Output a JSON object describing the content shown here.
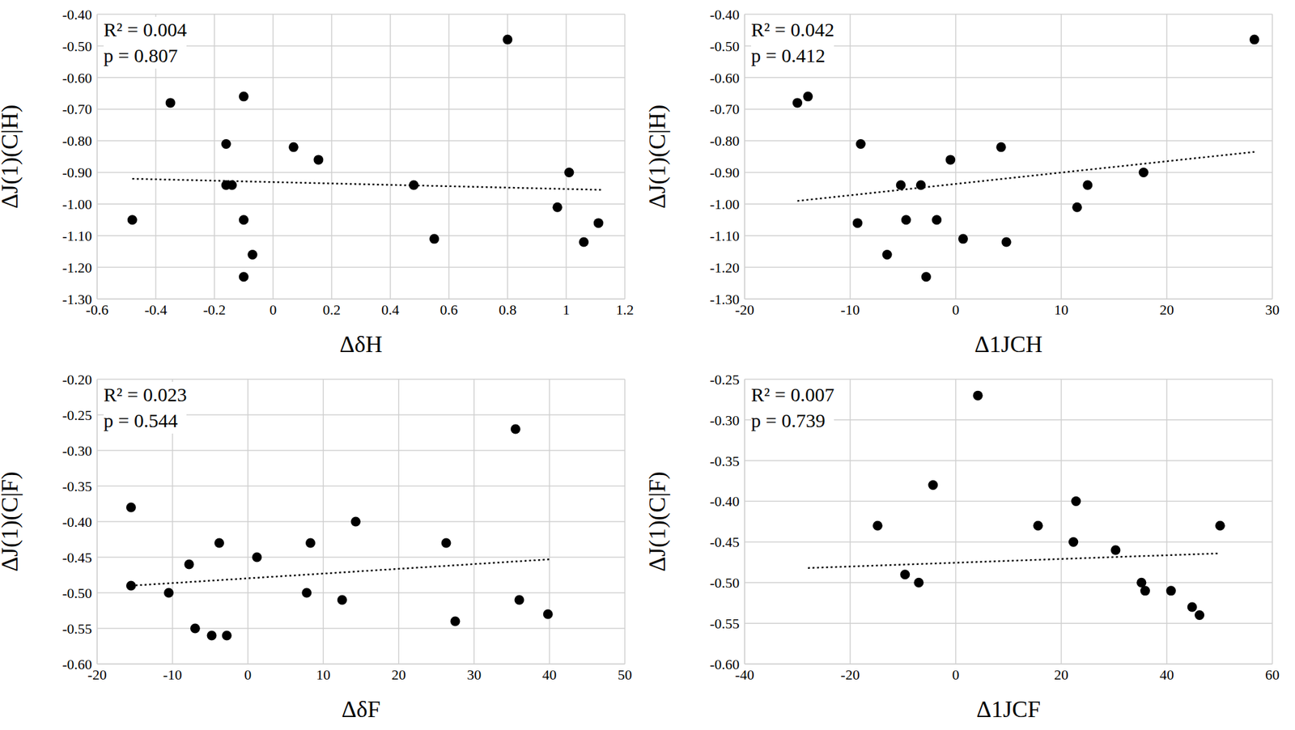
{
  "chart_data": [
    {
      "type": "scatter",
      "x_label": "ΔδH",
      "y_label": "ΔJ(1)(C|H)",
      "annotations": [
        "R² = 0.004",
        "p = 0.807"
      ],
      "x": [
        -0.48,
        -0.35,
        -0.1,
        -0.16,
        -0.16,
        -0.14,
        -0.1,
        -0.07,
        -0.1,
        0.07,
        0.155,
        0.48,
        0.55,
        0.8,
        1.01,
        0.97,
        1.06,
        1.11
      ],
      "y": [
        -1.05,
        -0.68,
        -0.66,
        -0.81,
        -0.94,
        -0.94,
        -1.05,
        -1.16,
        -1.23,
        -0.82,
        -0.86,
        -0.94,
        -1.11,
        -0.48,
        -0.9,
        -1.01,
        -1.12,
        -1.06
      ],
      "color": "#000000",
      "marker": "circle",
      "trendline": {
        "x": [
          -0.48,
          1.12
        ],
        "y": [
          -0.92,
          -0.955
        ],
        "line_style": "dotted",
        "color": "#000000"
      },
      "xlim": [
        -0.6,
        1.2
      ],
      "xticks": [
        -0.6,
        -0.4,
        -0.2,
        0,
        0.2,
        0.4,
        0.6,
        0.8,
        1,
        1.2
      ],
      "ylim": [
        -1.3,
        -0.4
      ],
      "yticks": [
        {
          "value": -1.3,
          "label": "-1.30"
        },
        {
          "value": -1.2,
          "label": "-1.20"
        },
        {
          "value": -1.1,
          "label": "-1.10"
        },
        {
          "value": -1.0,
          "label": "-1.00"
        },
        {
          "value": -0.9,
          "label": "-0.90"
        },
        {
          "value": -0.8,
          "label": "-0.80"
        },
        {
          "value": -0.7,
          "label": "-0.70"
        },
        {
          "value": -0.6,
          "label": "-0.60"
        },
        {
          "value": -0.5,
          "label": "-0.50"
        },
        {
          "value": -0.4,
          "label": "-0.40"
        }
      ],
      "grid": true
    },
    {
      "type": "scatter",
      "x_label": "Δ1JCH",
      "y_label": "ΔJ(1)(C|H)",
      "annotations": [
        "R² = 0.042",
        "p = 0.412"
      ],
      "x": [
        -15,
        -14,
        28.3,
        -9,
        4.3,
        -0.5,
        -5.2,
        -3.3,
        12.5,
        17.8,
        11.5,
        -9.3,
        -4.7,
        -1.8,
        0.7,
        4.8,
        -6.5,
        -2.8
      ],
      "y": [
        -0.68,
        -0.66,
        -0.48,
        -0.81,
        -0.82,
        -0.86,
        -0.94,
        -0.94,
        -0.94,
        -0.9,
        -1.01,
        -1.06,
        -1.05,
        -1.05,
        -1.11,
        -1.12,
        -1.16,
        -1.23
      ],
      "color": "#000000",
      "marker": "circle",
      "trendline": {
        "x": [
          -15,
          28.3
        ],
        "y": [
          -0.99,
          -0.835
        ],
        "line_style": "dotted",
        "color": "#000000"
      },
      "xlim": [
        -20,
        30
      ],
      "xticks": [
        -20,
        -10,
        0,
        10,
        20,
        30
      ],
      "ylim": [
        -1.3,
        -0.4
      ],
      "yticks": [
        {
          "value": -1.3,
          "label": "-1.30"
        },
        {
          "value": -1.2,
          "label": "-1.20"
        },
        {
          "value": -1.1,
          "label": "-1.10"
        },
        {
          "value": -1.0,
          "label": "-1.00"
        },
        {
          "value": -0.9,
          "label": "-0.90"
        },
        {
          "value": -0.8,
          "label": "-0.80"
        },
        {
          "value": -0.7,
          "label": "-0.70"
        },
        {
          "value": -0.6,
          "label": "-0.60"
        },
        {
          "value": -0.5,
          "label": "-0.50"
        },
        {
          "value": -0.4,
          "label": "-0.40"
        }
      ],
      "grid": true
    },
    {
      "type": "scatter",
      "x_label": "ΔδF",
      "y_label": "ΔJ(1)(C|F)",
      "annotations": [
        "R² = 0.023",
        "p = 0.544"
      ],
      "x": [
        -15.5,
        -15.5,
        -10.5,
        -7.8,
        -7,
        -4.8,
        -3.8,
        -2.8,
        1.2,
        7.8,
        8.3,
        12.5,
        14.3,
        26.3,
        27.5,
        35.5,
        36,
        39.8
      ],
      "y": [
        -0.38,
        -0.49,
        -0.5,
        -0.46,
        -0.55,
        -0.56,
        -0.43,
        -0.56,
        -0.45,
        -0.5,
        -0.43,
        -0.51,
        -0.4,
        -0.43,
        -0.54,
        -0.27,
        -0.51,
        -0.53
      ],
      "color": "#000000",
      "marker": "circle",
      "trendline": {
        "x": [
          -15.5,
          40
        ],
        "y": [
          -0.49,
          -0.453
        ],
        "line_style": "dotted",
        "color": "#000000"
      },
      "xlim": [
        -20,
        50
      ],
      "xticks": [
        -20,
        -10,
        0,
        10,
        20,
        30,
        40,
        50
      ],
      "ylim": [
        -0.6,
        -0.2
      ],
      "yticks": [
        {
          "value": -0.6,
          "label": "-0.60"
        },
        {
          "value": -0.55,
          "label": "-0.55"
        },
        {
          "value": -0.5,
          "label": "-0.50"
        },
        {
          "value": -0.45,
          "label": "-0.45"
        },
        {
          "value": -0.4,
          "label": "-0.40"
        },
        {
          "value": -0.35,
          "label": "-0.35"
        },
        {
          "value": -0.3,
          "label": "-0.30"
        },
        {
          "value": -0.25,
          "label": "-0.25"
        },
        {
          "value": -0.2,
          "label": "-0.20"
        }
      ],
      "grid": true
    },
    {
      "type": "scatter",
      "x_label": "Δ1JCF",
      "y_label": "ΔJ(1)(C|F)",
      "annotations": [
        "R² = 0.007",
        "p = 0.739"
      ],
      "x": [
        -14.8,
        -9.6,
        -7,
        -4.3,
        4.2,
        15.6,
        22.3,
        22.8,
        30.3,
        35.2,
        35.9,
        40.8,
        44.8,
        46.2,
        50.1
      ],
      "y": [
        -0.43,
        -0.49,
        -0.5,
        -0.38,
        -0.27,
        -0.43,
        -0.45,
        -0.4,
        -0.46,
        -0.5,
        -0.51,
        -0.51,
        -0.53,
        -0.54,
        -0.43
      ],
      "color": "#000000",
      "marker": "circle",
      "trendline": {
        "x": [
          -28,
          50
        ],
        "y": [
          -0.482,
          -0.464
        ],
        "line_style": "dotted",
        "color": "#000000"
      },
      "xlim": [
        -40,
        60
      ],
      "xticks": [
        -40,
        -20,
        0,
        20,
        40,
        60
      ],
      "ylim": [
        -0.6,
        -0.25
      ],
      "yticks": [
        {
          "value": -0.6,
          "label": "-0.60"
        },
        {
          "value": -0.55,
          "label": "-0.55"
        },
        {
          "value": -0.5,
          "label": "-0.50"
        },
        {
          "value": -0.45,
          "label": "-0.45"
        },
        {
          "value": -0.4,
          "label": "-0.40"
        },
        {
          "value": -0.35,
          "label": "-0.35"
        },
        {
          "value": -0.3,
          "label": "-0.30"
        },
        {
          "value": -0.25,
          "label": "-0.25"
        }
      ],
      "grid": true
    }
  ]
}
